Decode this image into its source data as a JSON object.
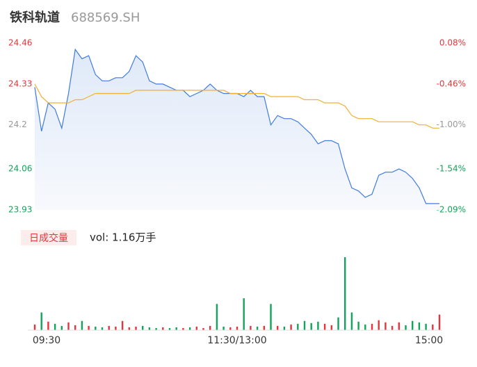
{
  "header": {
    "name": "铁科轨道",
    "code": "688569.SH"
  },
  "chart_data": [
    {
      "type": "line",
      "ylim": [
        23.93,
        24.46
      ],
      "yticks": [
        24.46,
        24.33,
        24.2,
        24.06,
        23.93
      ],
      "y2ticks": [
        {
          "value": 24.46,
          "label": "0.08%"
        },
        {
          "value": 24.33,
          "label": "-0.46%"
        },
        {
          "value": 24.2,
          "label": "-1.00%"
        },
        {
          "value": 24.06,
          "label": "-1.54%"
        },
        {
          "value": 23.93,
          "label": "-2.09%"
        }
      ],
      "tick_colors": [
        "#e6353a",
        "#e6353a",
        "#999999",
        "#13a35a",
        "#13a35a"
      ],
      "xlim": [
        0,
        60
      ],
      "series": [
        {
          "name": "price",
          "color": "#3f7be0",
          "values": [
            24.32,
            24.18,
            24.27,
            24.25,
            24.19,
            24.3,
            24.44,
            24.41,
            24.42,
            24.36,
            24.34,
            24.34,
            24.35,
            24.35,
            24.37,
            24.42,
            24.4,
            24.34,
            24.33,
            24.33,
            24.32,
            24.31,
            24.31,
            24.29,
            24.3,
            24.31,
            24.33,
            24.31,
            24.3,
            24.3,
            24.3,
            24.29,
            24.31,
            24.29,
            24.29,
            24.2,
            24.23,
            24.22,
            24.22,
            24.21,
            24.19,
            24.17,
            24.14,
            24.15,
            24.15,
            24.14,
            24.06,
            24.0,
            23.99,
            23.97,
            23.98,
            24.04,
            24.05,
            24.05,
            24.06,
            24.05,
            24.03,
            24.0,
            23.95,
            23.95,
            23.95
          ]
        },
        {
          "name": "average",
          "color": "#f0b030",
          "values": [
            24.33,
            24.29,
            24.27,
            24.27,
            24.27,
            24.27,
            24.28,
            24.28,
            24.29,
            24.3,
            24.3,
            24.3,
            24.3,
            24.3,
            24.3,
            24.31,
            24.31,
            24.31,
            24.31,
            24.31,
            24.31,
            24.31,
            24.31,
            24.31,
            24.31,
            24.31,
            24.31,
            24.31,
            24.31,
            24.3,
            24.3,
            24.3,
            24.3,
            24.3,
            24.3,
            24.29,
            24.29,
            24.29,
            24.29,
            24.29,
            24.28,
            24.28,
            24.28,
            24.27,
            24.27,
            24.27,
            24.26,
            24.23,
            24.22,
            24.22,
            24.22,
            24.21,
            24.21,
            24.21,
            24.21,
            24.21,
            24.21,
            24.2,
            24.2,
            24.19,
            24.19
          ]
        }
      ]
    },
    {
      "type": "bar",
      "legend": "日成交量",
      "summary": "vol: 1.16万手",
      "up_color": "#e6353a",
      "down_color": "#13a35a",
      "xlim": [
        0,
        60
      ],
      "xticks": [
        {
          "value": 0,
          "label": "09:30"
        },
        {
          "value": 30,
          "label": "11:30/13:00"
        },
        {
          "value": 60,
          "label": "15:00"
        }
      ],
      "values": [
        80,
        250,
        120,
        90,
        60,
        110,
        70,
        130,
        60,
        50,
        40,
        60,
        50,
        130,
        40,
        50,
        60,
        40,
        30,
        40,
        30,
        40,
        30,
        40,
        50,
        30,
        60,
        370,
        50,
        40,
        50,
        450,
        60,
        50,
        60,
        370,
        60,
        50,
        80,
        90,
        130,
        100,
        120,
        90,
        70,
        180,
        1030,
        250,
        120,
        80,
        90,
        140,
        110,
        60,
        110,
        70,
        130,
        110,
        90,
        80,
        220
      ]
    }
  ]
}
